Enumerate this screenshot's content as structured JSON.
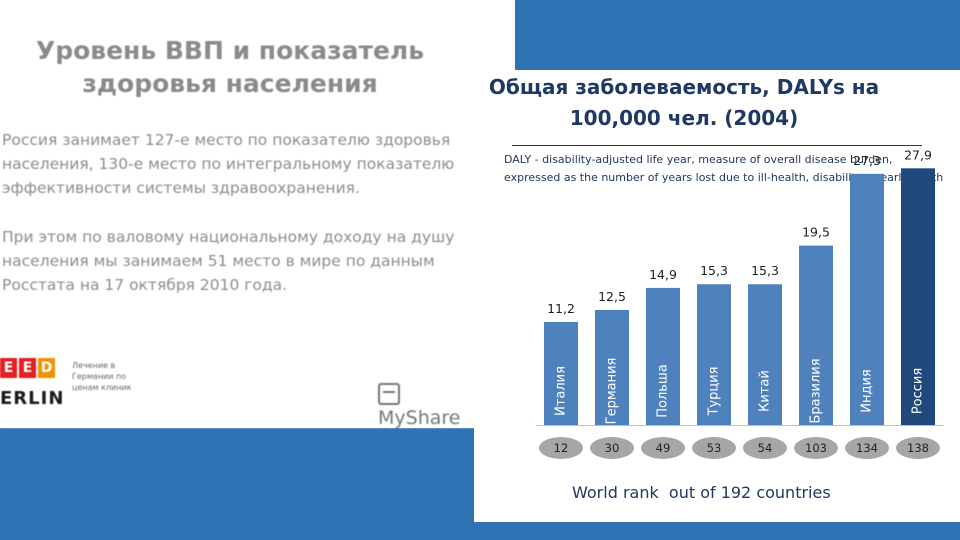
{
  "left": {
    "title": "Уровень ВВП и показатель здоровья населения",
    "paragraph1": "Россия занимает 127-е место по показателю здоровья населения, 130-е место по интегральному показателю эффективности системы здравоохранения.",
    "paragraph2": "При этом по валовому национальному доходу на душу населения мы занимаем 51 место в мире по данным Росстата на 17 октября 2010 года.",
    "logo_letters": [
      "E",
      "E",
      "D"
    ],
    "logo_word": "ERLIN",
    "logo_tagline": "Лечение в Германии по ценам клиник",
    "watermark": "MyShare"
  },
  "colors": {
    "band": "#2e74b5",
    "bar": "#4f81bd",
    "bar_highlight": "#1f497d",
    "rank_pill": "#a6a6a6",
    "text_dark": "#1f3864",
    "logo_red": "#e31e24",
    "logo_orange": "#f39200"
  },
  "chart_data": {
    "type": "bar",
    "title": "Общая заболеваемость, DALYs на 100,000 чел. (2004)",
    "footnote": "DALY - disability-adjusted life year, measure of overall disease burden, expressed as the number of years lost due to ill-health, disability or early death",
    "categories": [
      "Италия",
      "Германия",
      "Польша",
      "Турция",
      "Китай",
      "Бразилия",
      "Индия",
      "Россия"
    ],
    "values": [
      11.2,
      12.5,
      14.9,
      15.3,
      15.3,
      19.5,
      27.3,
      27.9
    ],
    "value_labels": [
      "11,2",
      "12,5",
      "14,9",
      "15,3",
      "15,3",
      "19,5",
      "27,3",
      "27,9"
    ],
    "highlight_category": "Россия",
    "world_rank": [
      12,
      30,
      49,
      53,
      54,
      103,
      134,
      138
    ],
    "world_rank_caption": "World rank  out of 192 countries",
    "ylim": [
      0,
      30
    ],
    "grid": false,
    "legend": "none"
  }
}
